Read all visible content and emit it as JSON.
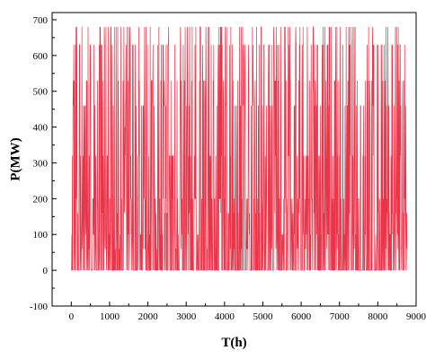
{
  "chart_data": {
    "type": "line",
    "title": "",
    "xlabel": "T(h)",
    "ylabel": "P(MW)",
    "xlim": [
      -500,
      9000
    ],
    "ylim": [
      -100,
      720
    ],
    "x_ticks": [
      0,
      1000,
      2000,
      3000,
      4000,
      5000,
      6000,
      7000,
      8000,
      9000
    ],
    "y_ticks": [
      -100,
      0,
      100,
      200,
      300,
      400,
      500,
      600,
      700
    ],
    "x_tick_labels": [
      "0",
      "1000",
      "2000",
      "3000",
      "4000",
      "5000",
      "6000",
      "7000",
      "8000",
      "9000"
    ],
    "y_tick_labels": [
      "-100",
      "0",
      "100",
      "200",
      "300",
      "400",
      "500",
      "600",
      "700"
    ],
    "grid": false,
    "legend": "none",
    "series": [
      {
        "color": "#e8354a",
        "x_range": [
          0,
          8760
        ],
        "min": 0,
        "max": 680,
        "frequent_levels": [
          0,
          60,
          100,
          160,
          200,
          320,
          460,
          530,
          630,
          680
        ],
        "values_sample": [
          0,
          460,
          100,
          200,
          0,
          630,
          60,
          320,
          0,
          530,
          680,
          100,
          0,
          200,
          460,
          0,
          160,
          680,
          0,
          320,
          100,
          0,
          680,
          200,
          0,
          460,
          60,
          0,
          530,
          100,
          200,
          0,
          400,
          0,
          100,
          680,
          0,
          200,
          320,
          0,
          160,
          100,
          0,
          460,
          200,
          0,
          100,
          680,
          0,
          60,
          200,
          0,
          320,
          100,
          0,
          460,
          0,
          160,
          680,
          0,
          200,
          0,
          100,
          530,
          0,
          680,
          200,
          0,
          100,
          460,
          0,
          320,
          680,
          0,
          200,
          100,
          0,
          680,
          60,
          0,
          460,
          0,
          680,
          200,
          0,
          100,
          320,
          0,
          680,
          160,
          0,
          200,
          460,
          0,
          100,
          680,
          0,
          200,
          0,
          530,
          100,
          0,
          680,
          320,
          0,
          200,
          100,
          0,
          460,
          0,
          160,
          200,
          0,
          680,
          100,
          0,
          320,
          0,
          200,
          100,
          0,
          460,
          680,
          0,
          200,
          0,
          100,
          680,
          0,
          320,
          200,
          0,
          160,
          460,
          0,
          100,
          200,
          0,
          680,
          0,
          100,
          320,
          0,
          200,
          680,
          0,
          460,
          100,
          0,
          200,
          0,
          680,
          160,
          0,
          320,
          100,
          0,
          530,
          200,
          0,
          680,
          0,
          100,
          460,
          0,
          200,
          320,
          0,
          100,
          680,
          0,
          200,
          60,
          0,
          460,
          100,
          0,
          680,
          200,
          0,
          320,
          0,
          100,
          200,
          0,
          630,
          160,
          0,
          200,
          460,
          0,
          100,
          0,
          680,
          200,
          0,
          320,
          100,
          0,
          200
        ]
      }
    ]
  }
}
